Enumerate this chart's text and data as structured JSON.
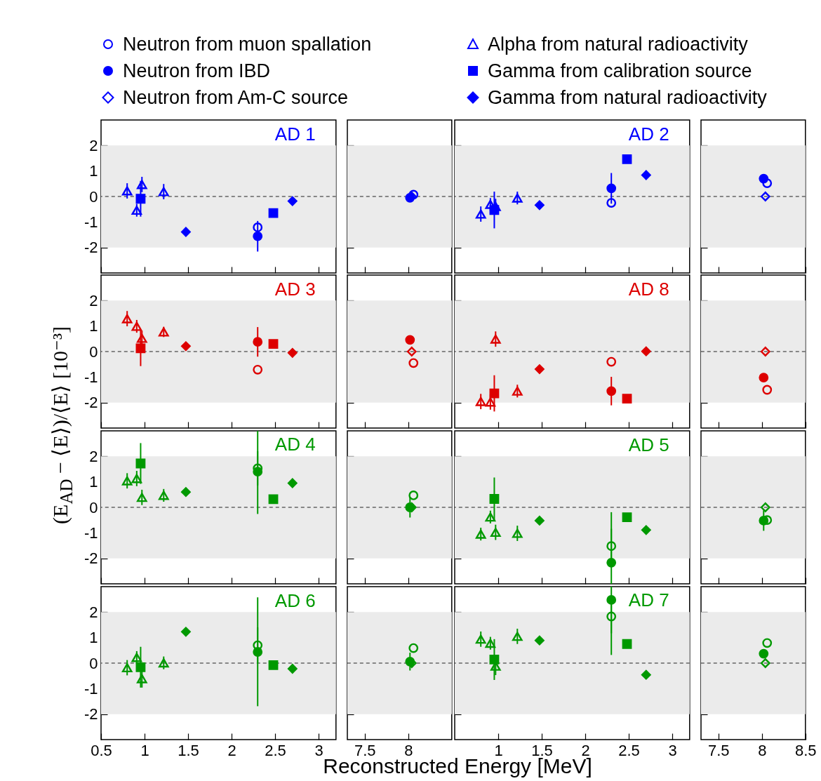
{
  "chart_data": [
    {
      "type": "scatter",
      "title": "AD 1",
      "ylabel": "(E$_{AD}$ − ⟨E⟩)/⟨E⟩ [10⁻³]",
      "legend": "top",
      "tick_labels": "y",
      "xlim": [
        0.5,
        3.2
      ],
      "xticks": [
        0.5,
        1,
        1.5,
        2,
        2.5,
        3
      ],
      "ylim": [
        -3,
        3
      ],
      "yticks": [
        -2,
        -1,
        0,
        1,
        2
      ],
      "bands": [
        {
          "axis": "y",
          "from": -2,
          "to": 2,
          "color": "#ebebeb"
        }
      ],
      "ref_lines": [
        {
          "axis": "y",
          "value": 0,
          "line_style": "dashed",
          "color": "#666666"
        }
      ],
      "series": [
        {
          "name": "Alpha from natural radioactivity",
          "color": "#0000ff",
          "marker": "triangle",
          "x": [
            0.8,
            0.91,
            0.97,
            1.22
          ],
          "values": [
            0.22,
            -0.54,
            0.47,
            0.19
          ],
          "errors": [
            0.3,
            0.25,
            0.3,
            0.3
          ]
        },
        {
          "name": "Gamma from calibration source",
          "color": "#0000ff",
          "marker": "square",
          "x": [
            0.955,
            2.48
          ],
          "values": [
            -0.09,
            -0.65
          ],
          "errors": [
            0.7,
            null
          ]
        },
        {
          "name": "Gamma from natural radioactivity",
          "color": "#0000ff",
          "marker": "diamond",
          "x": [
            1.475,
            2.7
          ],
          "values": [
            -1.39,
            -0.18
          ]
        },
        {
          "color": "#0000ff",
          "marker": "circle",
          "x": [
            2.3
          ],
          "values": [
            -1.21
          ]
        },
        {
          "color": "#0000ff",
          "marker": "circle",
          "x": [
            2.3
          ],
          "values": [
            -1.56
          ],
          "errors": [
            0.6
          ]
        }
      ]
    },
    {
      "type": "scatter",
      "legend": "top",
      "tick_labels": false,
      "xlim": [
        7.3,
        8.5
      ],
      "xticks": [
        7.5,
        8
      ],
      "ylim": [
        -3,
        3
      ],
      "yticks": [
        -2,
        -1,
        0,
        1,
        2
      ],
      "bands": [
        {
          "axis": "y",
          "from": -2,
          "to": 2,
          "color": "#ebebeb"
        }
      ],
      "ref_lines": [
        {
          "axis": "y",
          "value": 0,
          "line_style": "dashed",
          "color": "#666666"
        }
      ],
      "series": [
        {
          "name": "Neutron from muon spallation",
          "color": "#0000ff",
          "marker": "circle",
          "x": [
            8.06
          ],
          "values": [
            0.07
          ]
        },
        {
          "name": "Neutron from IBD",
          "color": "#0000ff",
          "marker": "circle",
          "x": [
            8.02
          ],
          "values": [
            -0.05
          ]
        },
        {
          "name": "Neutron from Am-C source",
          "color": "#0000ff",
          "marker": "diamond",
          "x": [
            8.04
          ],
          "values": [
            0
          ]
        }
      ]
    },
    {
      "type": "scatter",
      "title": "AD 2",
      "tick_labels": false,
      "xlim": [
        0.5,
        3.2
      ],
      "xticks": [
        1,
        1.5,
        2,
        2.5,
        3
      ],
      "ylim": [
        -3,
        3
      ],
      "yticks": [
        -2,
        -1,
        0,
        1,
        2
      ],
      "bands": [
        {
          "axis": "y",
          "from": -2,
          "to": 2,
          "color": "#ebebeb"
        }
      ],
      "ref_lines": [
        {
          "axis": "y",
          "value": 0,
          "line_style": "dashed",
          "color": "#666666"
        }
      ],
      "series": [
        {
          "color": "#0000ff",
          "marker": "triangle",
          "x": [
            0.8,
            0.91,
            0.97,
            1.22
          ],
          "values": [
            -0.69,
            -0.31,
            -0.39,
            -0.06
          ],
          "errors": [
            0.3,
            0.25,
            0.3,
            0.25
          ]
        },
        {
          "color": "#0000ff",
          "marker": "square",
          "x": [
            0.955,
            2.48
          ],
          "values": [
            -0.53,
            1.46
          ],
          "errors": [
            0.72,
            null
          ]
        },
        {
          "color": "#0000ff",
          "marker": "diamond",
          "x": [
            1.475,
            2.7
          ],
          "values": [
            -0.34,
            0.84
          ]
        },
        {
          "color": "#0000ff",
          "marker": "circle",
          "x": [
            2.3
          ],
          "values": [
            -0.25
          ]
        },
        {
          "color": "#0000ff",
          "marker": "circle",
          "x": [
            2.3
          ],
          "values": [
            0.32
          ],
          "errors": [
            0.6
          ]
        }
      ]
    },
    {
      "type": "scatter",
      "tick_labels": false,
      "xlim": [
        7.3,
        8.5
      ],
      "xticks": [
        7.5,
        8,
        8.5
      ],
      "ylim": [
        -3,
        3
      ],
      "yticks": [
        -2,
        -1,
        0,
        1,
        2
      ],
      "bands": [
        {
          "axis": "y",
          "from": -2,
          "to": 2,
          "color": "#ebebeb"
        }
      ],
      "ref_lines": [
        {
          "axis": "y",
          "value": 0,
          "line_style": "dashed",
          "color": "#666666"
        }
      ],
      "series": [
        {
          "color": "#0000ff",
          "marker": "circle",
          "x": [
            8.06
          ],
          "values": [
            0.52
          ]
        },
        {
          "color": "#0000ff",
          "marker": "circle",
          "x": [
            8.02
          ],
          "values": [
            0.7
          ]
        },
        {
          "color": "#0000ff",
          "marker": "diamond",
          "x": [
            8.04
          ],
          "values": [
            0
          ]
        }
      ]
    },
    {
      "type": "scatter",
      "title": "AD 3",
      "tick_labels": "y",
      "xlim": [
        0.5,
        3.2
      ],
      "xticks": [
        0.5,
        1,
        1.5,
        2,
        2.5,
        3
      ],
      "ylim": [
        -3,
        3
      ],
      "yticks": [
        -2,
        -1,
        0,
        1,
        2
      ],
      "bands": [
        {
          "axis": "y",
          "from": -2,
          "to": 2,
          "color": "#ebebeb"
        }
      ],
      "ref_lines": [
        {
          "axis": "y",
          "value": 0,
          "line_style": "dashed",
          "color": "#666666"
        }
      ],
      "series": [
        {
          "color": "#dd0000",
          "marker": "triangle",
          "x": [
            0.8,
            0.91,
            0.97,
            1.22
          ],
          "values": [
            1.29,
            0.99,
            0.52,
            0.77
          ],
          "errors": [
            0.3,
            0.25,
            0.3,
            0.2
          ]
        },
        {
          "color": "#dd0000",
          "marker": "square",
          "x": [
            0.955,
            2.48
          ],
          "values": [
            0.13,
            0.3
          ],
          "errors": [
            0.7,
            null
          ]
        },
        {
          "color": "#dd0000",
          "marker": "diamond",
          "x": [
            1.475,
            2.7
          ],
          "values": [
            0.21,
            -0.05
          ]
        },
        {
          "color": "#dd0000",
          "marker": "circle",
          "x": [
            2.3
          ],
          "values": [
            -0.71
          ]
        },
        {
          "color": "#dd0000",
          "marker": "circle",
          "x": [
            2.3
          ],
          "values": [
            0.38
          ],
          "errors": [
            0.58
          ]
        }
      ]
    },
    {
      "type": "scatter",
      "tick_labels": false,
      "xlim": [
        7.3,
        8.5
      ],
      "xticks": [
        7.5,
        8
      ],
      "ylim": [
        -3,
        3
      ],
      "yticks": [
        -2,
        -1,
        0,
        1,
        2
      ],
      "bands": [
        {
          "axis": "y",
          "from": -2,
          "to": 2,
          "color": "#ebebeb"
        }
      ],
      "ref_lines": [
        {
          "axis": "y",
          "value": 0,
          "line_style": "dashed",
          "color": "#666666"
        }
      ],
      "series": [
        {
          "color": "#dd0000",
          "marker": "circle",
          "x": [
            8.06
          ],
          "values": [
            -0.45
          ]
        },
        {
          "color": "#dd0000",
          "marker": "circle",
          "x": [
            8.02
          ],
          "values": [
            0.46
          ]
        },
        {
          "color": "#dd0000",
          "marker": "diamond",
          "x": [
            8.04
          ],
          "values": [
            0
          ]
        }
      ]
    },
    {
      "type": "scatter",
      "title": "AD 8",
      "tick_labels": false,
      "xlim": [
        0.5,
        3.2
      ],
      "xticks": [
        1,
        1.5,
        2,
        2.5,
        3
      ],
      "ylim": [
        -3,
        3
      ],
      "yticks": [
        -2,
        -1,
        0,
        1,
        2
      ],
      "bands": [
        {
          "axis": "y",
          "from": -2,
          "to": 2,
          "color": "#ebebeb"
        }
      ],
      "ref_lines": [
        {
          "axis": "y",
          "value": 0,
          "line_style": "dashed",
          "color": "#666666"
        }
      ],
      "series": [
        {
          "color": "#dd0000",
          "marker": "triangle",
          "x": [
            0.8,
            0.91,
            0.97,
            1.22
          ],
          "values": [
            -1.96,
            -1.98,
            0.49,
            -1.55
          ],
          "errors": [
            0.3,
            0.3,
            0.3,
            0.25
          ]
        },
        {
          "color": "#dd0000",
          "marker": "square",
          "x": [
            0.955,
            2.48
          ],
          "values": [
            -1.64,
            -1.85
          ],
          "errors": [
            0.71,
            null
          ]
        },
        {
          "color": "#dd0000",
          "marker": "diamond",
          "x": [
            1.475,
            2.7
          ],
          "values": [
            -0.69,
            0.01
          ]
        },
        {
          "color": "#dd0000",
          "marker": "circle",
          "x": [
            2.3
          ],
          "values": [
            -0.4
          ]
        },
        {
          "color": "#dd0000",
          "marker": "circle",
          "x": [
            2.3
          ],
          "values": [
            -1.55
          ],
          "errors": [
            0.56
          ]
        }
      ]
    },
    {
      "type": "scatter",
      "tick_labels": false,
      "xlim": [
        7.3,
        8.5
      ],
      "xticks": [
        7.5,
        8,
        8.5
      ],
      "ylim": [
        -3,
        3
      ],
      "yticks": [
        -2,
        -1,
        0,
        1,
        2
      ],
      "bands": [
        {
          "axis": "y",
          "from": -2,
          "to": 2,
          "color": "#ebebeb"
        }
      ],
      "ref_lines": [
        {
          "axis": "y",
          "value": 0,
          "line_style": "dashed",
          "color": "#666666"
        }
      ],
      "series": [
        {
          "color": "#dd0000",
          "marker": "circle",
          "x": [
            8.06
          ],
          "values": [
            -1.5
          ]
        },
        {
          "color": "#dd0000",
          "marker": "circle",
          "x": [
            8.02
          ],
          "values": [
            -1.02
          ]
        },
        {
          "color": "#dd0000",
          "marker": "diamond",
          "x": [
            8.04
          ],
          "values": [
            0
          ]
        }
      ]
    },
    {
      "type": "scatter",
      "title": "AD 4",
      "tick_labels": "y",
      "xlim": [
        0.5,
        3.2
      ],
      "xticks": [
        0.5,
        1,
        1.5,
        2,
        2.5,
        3
      ],
      "ylim": [
        -3,
        3
      ],
      "yticks": [
        -2,
        -1,
        0,
        1,
        2
      ],
      "bands": [
        {
          "axis": "y",
          "from": -2,
          "to": 2,
          "color": "#ebebeb"
        }
      ],
      "ref_lines": [
        {
          "axis": "y",
          "value": 0,
          "line_style": "dashed",
          "color": "#666666"
        }
      ],
      "series": [
        {
          "color": "#009900",
          "marker": "triangle",
          "x": [
            0.8,
            0.91,
            0.97,
            1.22
          ],
          "values": [
            1.04,
            1.13,
            0.39,
            0.47
          ],
          "errors": [
            0.3,
            0.3,
            0.3,
            0.25
          ]
        },
        {
          "color": "#009900",
          "marker": "square",
          "x": [
            0.955,
            2.48
          ],
          "values": [
            1.72,
            0.32
          ],
          "errors": [
            0.8,
            null
          ]
        },
        {
          "color": "#009900",
          "marker": "diamond",
          "x": [
            1.475,
            2.7
          ],
          "values": [
            0.6,
            0.95
          ]
        },
        {
          "color": "#009900",
          "marker": "circle",
          "x": [
            2.3
          ],
          "values": [
            1.53
          ],
          "errors": [
            0.67
          ]
        },
        {
          "color": "#009900",
          "marker": "circle",
          "x": [
            2.3
          ],
          "values": [
            1.4
          ],
          "errors": [
            [
              -0.26,
              3
            ]
          ]
        }
      ]
    },
    {
      "type": "scatter",
      "tick_labels": false,
      "xlim": [
        7.3,
        8.5
      ],
      "xticks": [
        7.5,
        8
      ],
      "ylim": [
        -3,
        3
      ],
      "yticks": [
        -2,
        -1,
        0,
        1,
        2
      ],
      "bands": [
        {
          "axis": "y",
          "from": -2,
          "to": 2,
          "color": "#ebebeb"
        }
      ],
      "ref_lines": [
        {
          "axis": "y",
          "value": 0,
          "line_style": "dashed",
          "color": "#666666"
        }
      ],
      "series": [
        {
          "color": "#009900",
          "marker": "circle",
          "x": [
            8.06
          ],
          "values": [
            0.47
          ]
        },
        {
          "color": "#009900",
          "marker": "circle",
          "x": [
            8.02
          ],
          "values": [
            0
          ],
          "errors": [
            0.4
          ]
        },
        {
          "color": "#009900",
          "marker": "diamond",
          "x": [
            8.04
          ],
          "values": [
            0
          ]
        }
      ]
    },
    {
      "type": "scatter",
      "title": "AD 5",
      "tick_labels": false,
      "xlim": [
        0.5,
        3.2
      ],
      "xticks": [
        1,
        1.5,
        2,
        2.5,
        3
      ],
      "ylim": [
        -3,
        3
      ],
      "yticks": [
        -2,
        -1,
        0,
        1,
        2
      ],
      "bands": [
        {
          "axis": "y",
          "from": -2,
          "to": 2,
          "color": "#ebebeb"
        }
      ],
      "ref_lines": [
        {
          "axis": "y",
          "value": 0,
          "line_style": "dashed",
          "color": "#666666"
        }
      ],
      "series": [
        {
          "color": "#009900",
          "marker": "triangle",
          "x": [
            0.8,
            0.91,
            0.97,
            1.22
          ],
          "values": [
            -1.05,
            -0.38,
            -0.98,
            -1.02
          ],
          "errors": [
            0.25,
            0.25,
            0.3,
            0.3
          ]
        },
        {
          "color": "#009900",
          "marker": "square",
          "x": [
            0.955,
            2.48
          ],
          "values": [
            0.33,
            -0.39
          ],
          "errors": [
            0.84,
            null
          ]
        },
        {
          "color": "#009900",
          "marker": "diamond",
          "x": [
            1.475,
            2.7
          ],
          "values": [
            -0.52,
            -0.89
          ]
        },
        {
          "color": "#009900",
          "marker": "circle",
          "x": [
            2.3
          ],
          "values": [
            -1.52
          ],
          "errors": [
            0.68
          ]
        },
        {
          "color": "#009900",
          "marker": "circle",
          "x": [
            2.3
          ],
          "values": [
            -2.17
          ],
          "errors": [
            [
              -3,
              -0.19
            ]
          ]
        }
      ]
    },
    {
      "type": "scatter",
      "tick_labels": false,
      "xlim": [
        7.3,
        8.5
      ],
      "xticks": [
        7.5,
        8,
        8.5
      ],
      "ylim": [
        -3,
        3
      ],
      "yticks": [
        -2,
        -1,
        0,
        1,
        2
      ],
      "bands": [
        {
          "axis": "y",
          "from": -2,
          "to": 2,
          "color": "#ebebeb"
        }
      ],
      "ref_lines": [
        {
          "axis": "y",
          "value": 0,
          "line_style": "dashed",
          "color": "#666666"
        }
      ],
      "series": [
        {
          "color": "#009900",
          "marker": "circle",
          "x": [
            8.06
          ],
          "values": [
            -0.5
          ]
        },
        {
          "color": "#009900",
          "marker": "circle",
          "x": [
            8.02
          ],
          "values": [
            -0.52
          ],
          "errors": [
            0.4
          ]
        },
        {
          "color": "#009900",
          "marker": "diamond",
          "x": [
            8.04
          ],
          "values": [
            0
          ]
        }
      ]
    },
    {
      "type": "scatter",
      "title": "AD 6",
      "xlabel": "Reconstructed Energy [MeV]",
      "xlim": [
        0.5,
        3.2
      ],
      "xticks": [
        0.5,
        1,
        1.5,
        2,
        2.5,
        3
      ],
      "ylim": [
        -3,
        3
      ],
      "yticks": [
        -2,
        -1,
        0,
        1,
        2
      ],
      "bands": [
        {
          "axis": "y",
          "from": -2,
          "to": 2,
          "color": "#ebebeb"
        }
      ],
      "ref_lines": [
        {
          "axis": "y",
          "value": 0,
          "line_style": "dashed",
          "color": "#666666"
        }
      ],
      "series": [
        {
          "color": "#009900",
          "marker": "triangle",
          "x": [
            0.8,
            0.91,
            0.97,
            1.22
          ],
          "values": [
            -0.18,
            0.22,
            -0.61,
            0.01
          ],
          "errors": [
            0.3,
            0.25,
            0.35,
            0.25
          ]
        },
        {
          "color": "#009900",
          "marker": "square",
          "x": [
            0.955,
            2.48
          ],
          "values": [
            -0.16,
            -0.08
          ],
          "errors": [
            0.8,
            null
          ]
        },
        {
          "color": "#009900",
          "marker": "diamond",
          "x": [
            1.475,
            2.7
          ],
          "values": [
            1.23,
            -0.22
          ]
        },
        {
          "color": "#009900",
          "marker": "circle",
          "x": [
            2.3
          ],
          "values": [
            0.7
          ],
          "errors": [
            0.7
          ]
        },
        {
          "color": "#009900",
          "marker": "circle",
          "x": [
            2.3
          ],
          "values": [
            0.44
          ],
          "errors": [
            [
              -1.69,
              2.58
            ]
          ]
        }
      ]
    },
    {
      "type": "scatter",
      "tick_labels": "x",
      "xlim": [
        7.3,
        8.5
      ],
      "xticks": [
        7.5,
        8
      ],
      "ylim": [
        -3,
        3
      ],
      "yticks": [
        -2,
        -1,
        0,
        1,
        2
      ],
      "bands": [
        {
          "axis": "y",
          "from": -2,
          "to": 2,
          "color": "#ebebeb"
        }
      ],
      "ref_lines": [
        {
          "axis": "y",
          "value": 0,
          "line_style": "dashed",
          "color": "#666666"
        }
      ],
      "series": [
        {
          "color": "#009900",
          "marker": "circle",
          "x": [
            8.06
          ],
          "values": [
            0.59
          ]
        },
        {
          "color": "#009900",
          "marker": "circle",
          "x": [
            8.02
          ],
          "values": [
            0.06
          ],
          "errors": [
            0.35
          ]
        },
        {
          "color": "#009900",
          "marker": "diamond",
          "x": [
            8.04
          ],
          "values": [
            0
          ]
        }
      ]
    },
    {
      "type": "scatter",
      "title": "AD 7",
      "tick_labels": "x",
      "xlim": [
        0.5,
        3.2
      ],
      "xticks": [
        1,
        1.5,
        2,
        2.5,
        3
      ],
      "ylim": [
        -3,
        3
      ],
      "yticks": [
        -2,
        -1,
        0,
        1,
        2
      ],
      "bands": [
        {
          "axis": "y",
          "from": -2,
          "to": 2,
          "color": "#ebebeb"
        }
      ],
      "ref_lines": [
        {
          "axis": "y",
          "value": 0,
          "line_style": "dashed",
          "color": "#666666"
        }
      ],
      "series": [
        {
          "color": "#009900",
          "marker": "triangle",
          "x": [
            0.8,
            0.91,
            0.97,
            1.22
          ],
          "values": [
            0.94,
            0.78,
            -0.12,
            1.05
          ],
          "errors": [
            0.3,
            0.25,
            0.35,
            0.3
          ]
        },
        {
          "color": "#009900",
          "marker": "square",
          "x": [
            0.955,
            2.48
          ],
          "values": [
            0.14,
            0.75
          ],
          "errors": [
            0.8,
            null
          ]
        },
        {
          "color": "#009900",
          "marker": "diamond",
          "x": [
            1.475,
            2.7
          ],
          "values": [
            0.89,
            -0.46
          ]
        },
        {
          "color": "#009900",
          "marker": "circle",
          "x": [
            2.3
          ],
          "values": [
            1.83
          ],
          "errors": [
            0.66
          ]
        },
        {
          "color": "#009900",
          "marker": "circle",
          "x": [
            2.3
          ],
          "values": [
            2.48
          ],
          "errors": [
            [
              0.32,
              3
            ]
          ]
        }
      ]
    },
    {
      "type": "scatter",
      "tick_labels": "x",
      "xlim": [
        7.3,
        8.5
      ],
      "xticks": [
        7.5,
        8,
        8.5
      ],
      "ylim": [
        -3,
        3
      ],
      "yticks": [
        -2,
        -1,
        0,
        1,
        2
      ],
      "bands": [
        {
          "axis": "y",
          "from": -2,
          "to": 2,
          "color": "#ebebeb"
        }
      ],
      "ref_lines": [
        {
          "axis": "y",
          "value": 0,
          "line_style": "dashed",
          "color": "#666666"
        }
      ],
      "series": [
        {
          "color": "#009900",
          "marker": "circle",
          "x": [
            8.06
          ],
          "values": [
            0.79
          ]
        },
        {
          "color": "#009900",
          "marker": "circle",
          "x": [
            8.02
          ],
          "values": [
            0.37
          ]
        },
        {
          "color": "#009900",
          "marker": "diamond",
          "x": [
            8.04
          ],
          "values": [
            0
          ]
        }
      ]
    }
  ]
}
